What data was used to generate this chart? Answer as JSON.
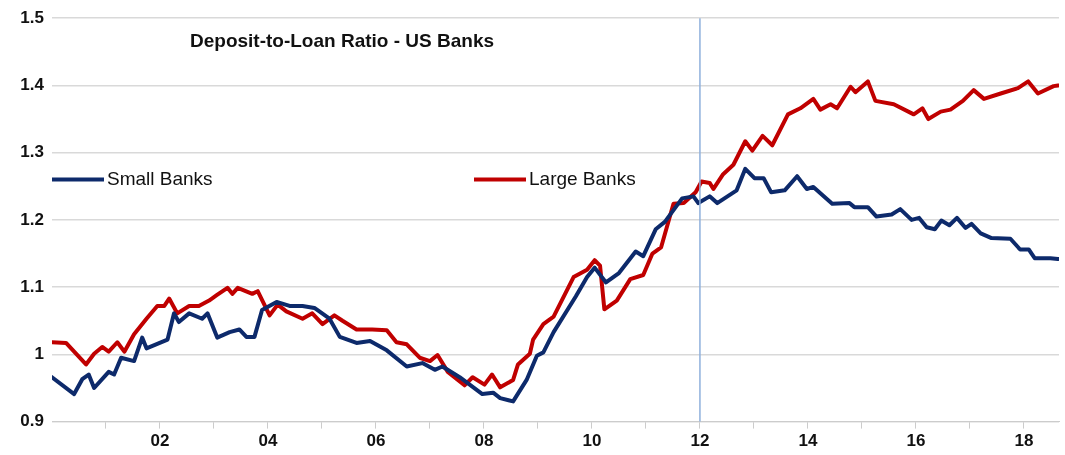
{
  "chart_data": {
    "type": "line",
    "title": "Deposit-to-Loan Ratio - US Banks",
    "xlim": [
      2000,
      2018.65
    ],
    "xticks": [
      {
        "value": 2001,
        "label": null
      },
      {
        "value": 2002,
        "label": "02"
      },
      {
        "value": 2003,
        "label": null
      },
      {
        "value": 2004,
        "label": "04"
      },
      {
        "value": 2005,
        "label": null
      },
      {
        "value": 2006,
        "label": "06"
      },
      {
        "value": 2007,
        "label": null
      },
      {
        "value": 2008,
        "label": "08"
      },
      {
        "value": 2009,
        "label": null
      },
      {
        "value": 2010,
        "label": "10"
      },
      {
        "value": 2011,
        "label": null
      },
      {
        "value": 2012,
        "label": "12"
      },
      {
        "value": 2013,
        "label": null
      },
      {
        "value": 2014,
        "label": "14"
      },
      {
        "value": 2015,
        "label": null
      },
      {
        "value": 2016,
        "label": "16"
      },
      {
        "value": 2017,
        "label": null
      },
      {
        "value": 2018,
        "label": "18"
      }
    ],
    "ylim": [
      0.9,
      1.5
    ],
    "yticks": [
      0.9,
      1,
      1.1,
      1.2,
      1.3,
      1.4,
      1.5
    ],
    "grid": "y",
    "legend": "top left",
    "marker": "none",
    "line_style": "solid",
    "ref_lines": [
      {
        "axis": "x",
        "value": 2012,
        "label": null,
        "color": "#8fb0dc"
      }
    ],
    "series": [
      {
        "name": "Small Banks",
        "color": "#0d2a6b",
        "x": [
          2000,
          2000.41,
          2000.56,
          2000.68,
          2000.78,
          2001.05,
          2001.15,
          2001.28,
          2001.52,
          2001.67,
          2001.75,
          2002.14,
          2002.26,
          2002.35,
          2002.54,
          2002.78,
          2002.88,
          2003.06,
          2003.29,
          2003.47,
          2003.6,
          2003.75,
          2003.89,
          2004.16,
          2004.4,
          2004.64,
          2004.86,
          2005.14,
          2005.33,
          2005.64,
          2005.89,
          2006.2,
          2006.57,
          2006.86,
          2007.09,
          2007.23,
          2007.55,
          2007.97,
          2008.17,
          2008.3,
          2008.54,
          2008.79,
          2008.98,
          2009.1,
          2009.29,
          2009.7,
          2009.91,
          2010.05,
          2010.26,
          2010.5,
          2010.81,
          2010.95,
          2011.18,
          2011.35,
          2011.67,
          2011.88,
          2011.97,
          2012.18,
          2012.32,
          2012.68,
          2012.84,
          2013.01,
          2013.18,
          2013.32,
          2013.57,
          2013.8,
          2013.98,
          2014.1,
          2014.45,
          2014.77,
          2014.86,
          2015.11,
          2015.27,
          2015.55,
          2015.71,
          2015.92,
          2016.06,
          2016.2,
          2016.35,
          2016.47,
          2016.62,
          2016.76,
          2016.92,
          2017.03,
          2017.2,
          2017.4,
          2017.75,
          2017.93,
          2018.09,
          2018.2,
          2018.49,
          2018.63
        ],
        "values": [
          0.966,
          0.941,
          0.963,
          0.97,
          0.95,
          0.974,
          0.97,
          0.995,
          0.99,
          1.025,
          1.009,
          1.022,
          1.061,
          1.048,
          1.061,
          1.053,
          1.061,
          1.025,
          1.033,
          1.037,
          1.026,
          1.026,
          1.066,
          1.078,
          1.072,
          1.072,
          1.069,
          1.053,
          1.026,
          1.017,
          1.02,
          1.006,
          0.982,
          0.987,
          0.977,
          0.982,
          0.966,
          0.941,
          0.943,
          0.935,
          0.93,
          0.962,
          0.998,
          1.003,
          1.033,
          1.086,
          1.115,
          1.129,
          1.107,
          1.121,
          1.153,
          1.146,
          1.186,
          1.197,
          1.232,
          1.235,
          1.225,
          1.235,
          1.225,
          1.244,
          1.276,
          1.262,
          1.262,
          1.241,
          1.244,
          1.265,
          1.246,
          1.249,
          1.224,
          1.225,
          1.219,
          1.219,
          1.205,
          1.208,
          1.216,
          1.2,
          1.203,
          1.189,
          1.186,
          1.199,
          1.192,
          1.203,
          1.188,
          1.194,
          1.18,
          1.173,
          1.172,
          1.156,
          1.156,
          1.143,
          1.143,
          1.142
        ]
      },
      {
        "name": "Large Banks",
        "color": "#c00000",
        "x": [
          2000,
          2000.26,
          2000.63,
          2000.78,
          2000.93,
          2001.05,
          2001.21,
          2001.34,
          2001.52,
          2001.75,
          2001.95,
          2002.08,
          2002.17,
          2002.32,
          2002.54,
          2002.72,
          2002.91,
          2003.05,
          2003.25,
          2003.34,
          2003.44,
          2003.71,
          2003.81,
          2004.03,
          2004.18,
          2004.34,
          2004.64,
          2004.82,
          2005.01,
          2005.23,
          2005.38,
          2005.64,
          2005.93,
          2006.2,
          2006.38,
          2006.57,
          2006.81,
          2007,
          2007.14,
          2007.33,
          2007.64,
          2007.79,
          2008.01,
          2008.15,
          2008.3,
          2008.54,
          2008.63,
          2008.85,
          2008.91,
          2009.1,
          2009.29,
          2009.66,
          2009.91,
          2010.05,
          2010.15,
          2010.23,
          2010.46,
          2010.71,
          2010.95,
          2011.12,
          2011.28,
          2011.51,
          2011.7,
          2011.92,
          2012.03,
          2012.18,
          2012.25,
          2012.43,
          2012.62,
          2012.84,
          2012.97,
          2013.16,
          2013.34,
          2013.63,
          2013.86,
          2014.1,
          2014.23,
          2014.42,
          2014.54,
          2014.79,
          2014.88,
          2015.11,
          2015.25,
          2015.59,
          2015.96,
          2016.12,
          2016.23,
          2016.46,
          2016.64,
          2016.87,
          2017.07,
          2017.26,
          2017.57,
          2017.89,
          2018.08,
          2018.26,
          2018.55,
          2018.63
        ],
        "values": [
          1.018,
          1.017,
          0.985,
          1.001,
          1.011,
          1.004,
          1.018,
          1.004,
          1.03,
          1.053,
          1.072,
          1.072,
          1.083,
          1.061,
          1.072,
          1.072,
          1.08,
          1.088,
          1.099,
          1.09,
          1.099,
          1.09,
          1.094,
          1.058,
          1.074,
          1.064,
          1.053,
          1.061,
          1.045,
          1.058,
          1.05,
          1.037,
          1.037,
          1.036,
          1.018,
          1.015,
          0.995,
          0.99,
          0.999,
          0.974,
          0.954,
          0.966,
          0.955,
          0.97,
          0.951,
          0.962,
          0.985,
          1.001,
          1.022,
          1.045,
          1.056,
          1.115,
          1.126,
          1.14,
          1.132,
          1.067,
          1.08,
          1.112,
          1.118,
          1.15,
          1.159,
          1.224,
          1.225,
          1.241,
          1.257,
          1.255,
          1.246,
          1.268,
          1.282,
          1.317,
          1.303,
          1.325,
          1.311,
          1.357,
          1.366,
          1.38,
          1.364,
          1.372,
          1.366,
          1.398,
          1.39,
          1.406,
          1.377,
          1.372,
          1.357,
          1.366,
          1.35,
          1.361,
          1.364,
          1.377,
          1.393,
          1.38,
          1.388,
          1.396,
          1.406,
          1.388,
          1.399,
          1.4
        ]
      }
    ]
  }
}
